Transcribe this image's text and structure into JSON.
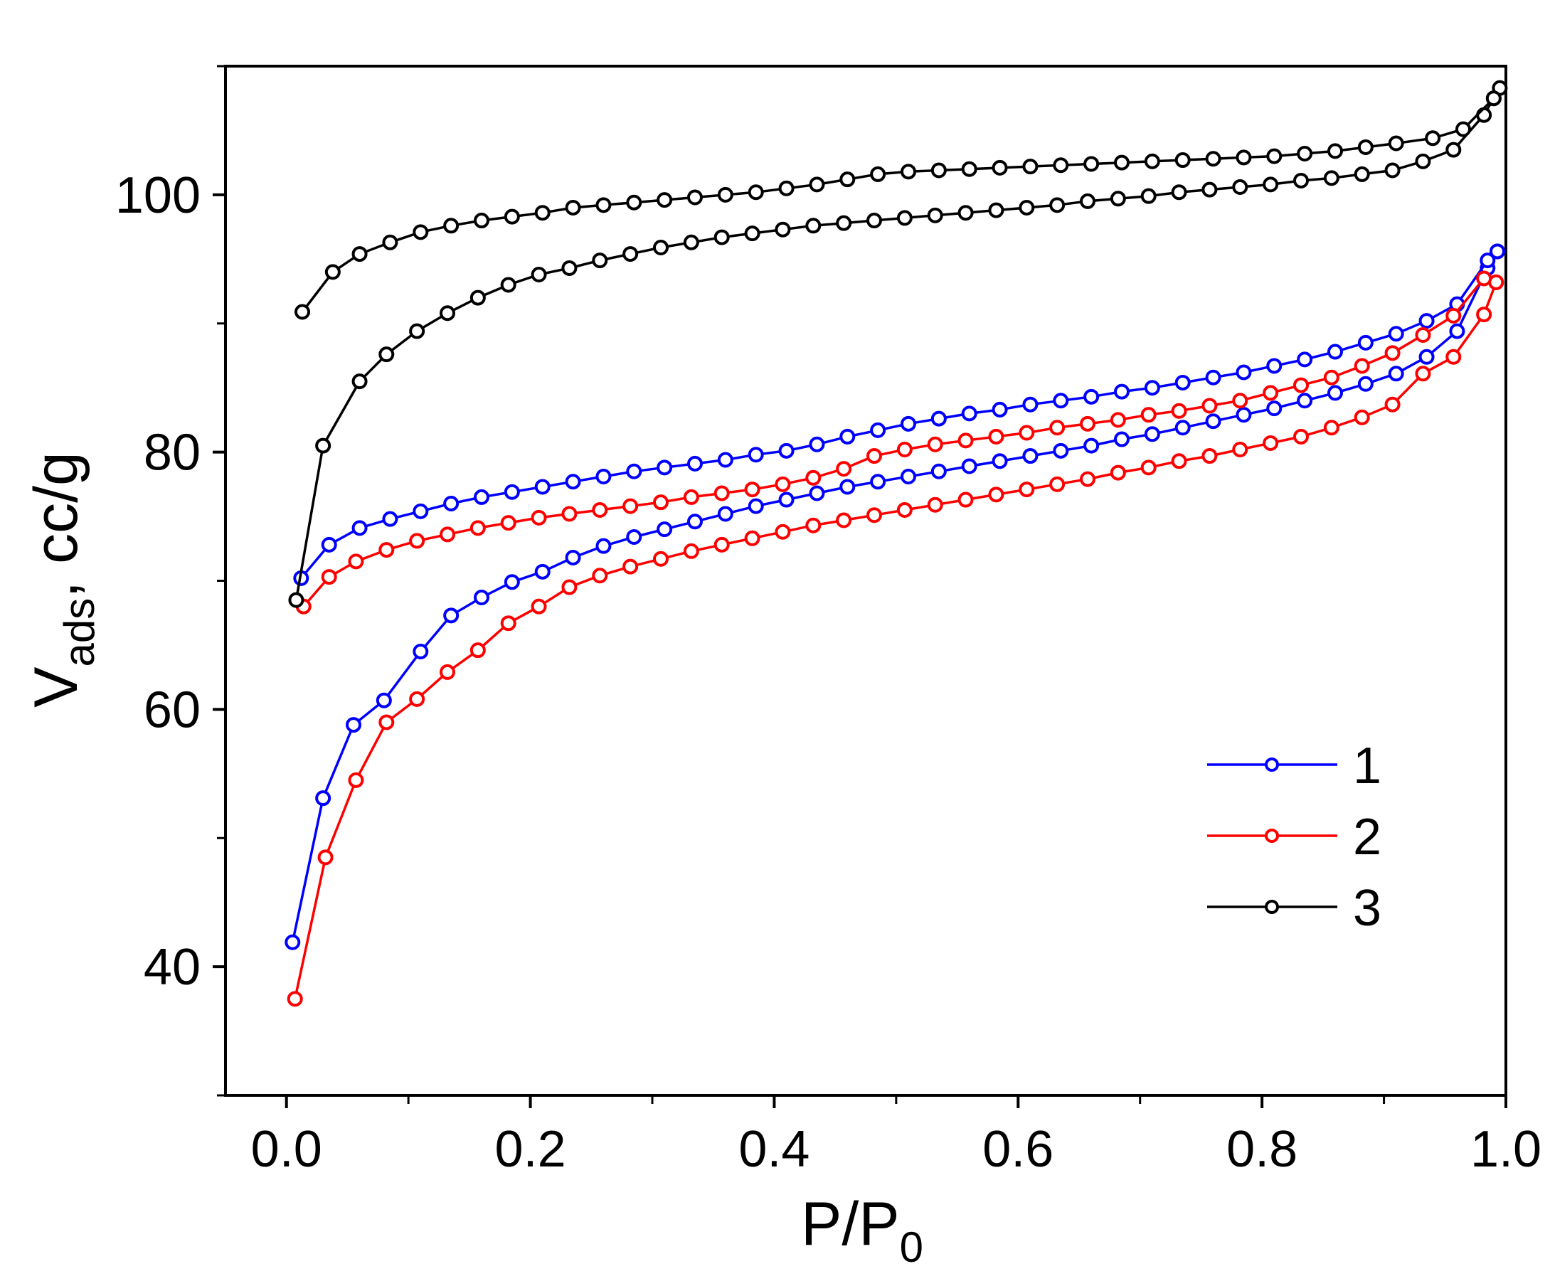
{
  "chart_data": {
    "type": "line",
    "xlabel": {
      "main": "P/P",
      "sub": "0"
    },
    "ylabel": {
      "main": "V",
      "sub": "ads",
      "rest": ", cc/g"
    },
    "xlim": [
      -0.05,
      1.0
    ],
    "ylim": [
      30,
      110
    ],
    "x_ticks": [
      "0.0",
      "0.2",
      "0.4",
      "0.6",
      "0.8",
      "1.0"
    ],
    "y_ticks": [
      "40",
      "60",
      "80",
      "100"
    ],
    "legend_position": "lower-right",
    "series": [
      {
        "name": "1",
        "color": "#0000ff",
        "adsorption": {
          "x": [
            0.005,
            0.03,
            0.055,
            0.08,
            0.11,
            0.135,
            0.16,
            0.185,
            0.21,
            0.235,
            0.26,
            0.285,
            0.31,
            0.335,
            0.36,
            0.385,
            0.41,
            0.435,
            0.46,
            0.485,
            0.51,
            0.535,
            0.56,
            0.585,
            0.61,
            0.635,
            0.66,
            0.685,
            0.71,
            0.735,
            0.76,
            0.785,
            0.81,
            0.835,
            0.86,
            0.885,
            0.91,
            0.935,
            0.96,
            0.985,
            0.993
          ],
          "y": [
            41.9,
            53.1,
            58.8,
            60.7,
            64.5,
            67.3,
            68.7,
            69.9,
            70.7,
            71.8,
            72.7,
            73.4,
            74.0,
            74.6,
            75.2,
            75.8,
            76.3,
            76.8,
            77.3,
            77.7,
            78.1,
            78.5,
            78.9,
            79.3,
            79.7,
            80.1,
            80.5,
            81.0,
            81.4,
            81.9,
            82.4,
            82.9,
            83.4,
            84.0,
            84.6,
            85.3,
            86.1,
            87.4,
            89.4,
            94.3,
            95.6
          ]
        },
        "desorption": {
          "x": [
            0.993,
            0.985,
            0.96,
            0.935,
            0.91,
            0.885,
            0.86,
            0.835,
            0.81,
            0.785,
            0.76,
            0.735,
            0.71,
            0.685,
            0.66,
            0.635,
            0.61,
            0.585,
            0.56,
            0.535,
            0.51,
            0.485,
            0.46,
            0.435,
            0.41,
            0.385,
            0.36,
            0.335,
            0.31,
            0.285,
            0.26,
            0.235,
            0.21,
            0.185,
            0.16,
            0.135,
            0.11,
            0.085,
            0.06,
            0.035,
            0.012
          ],
          "y": [
            95.6,
            94.9,
            91.5,
            90.2,
            89.2,
            88.5,
            87.8,
            87.2,
            86.7,
            86.2,
            85.8,
            85.4,
            85.0,
            84.7,
            84.3,
            84.0,
            83.7,
            83.3,
            83.0,
            82.6,
            82.2,
            81.7,
            81.2,
            80.6,
            80.1,
            79.8,
            79.4,
            79.1,
            78.8,
            78.5,
            78.1,
            77.7,
            77.3,
            76.9,
            76.5,
            76.0,
            75.4,
            74.8,
            74.1,
            72.8,
            70.2
          ]
        }
      },
      {
        "name": "2",
        "color": "#ff0000",
        "adsorption": {
          "x": [
            0.007,
            0.032,
            0.057,
            0.082,
            0.107,
            0.132,
            0.157,
            0.182,
            0.207,
            0.232,
            0.257,
            0.282,
            0.307,
            0.332,
            0.357,
            0.382,
            0.407,
            0.432,
            0.457,
            0.482,
            0.507,
            0.532,
            0.557,
            0.582,
            0.607,
            0.632,
            0.657,
            0.682,
            0.707,
            0.732,
            0.757,
            0.782,
            0.807,
            0.832,
            0.857,
            0.882,
            0.907,
            0.932,
            0.957,
            0.982,
            0.992
          ],
          "y": [
            37.5,
            48.5,
            54.5,
            59.0,
            60.8,
            62.9,
            64.6,
            66.7,
            68.0,
            69.5,
            70.4,
            71.1,
            71.7,
            72.3,
            72.8,
            73.3,
            73.8,
            74.3,
            74.7,
            75.1,
            75.5,
            75.9,
            76.3,
            76.7,
            77.1,
            77.5,
            77.9,
            78.4,
            78.8,
            79.3,
            79.7,
            80.2,
            80.7,
            81.2,
            81.9,
            82.7,
            83.7,
            86.1,
            87.4,
            90.7,
            93.2
          ]
        },
        "desorption": {
          "x": [
            0.992,
            0.982,
            0.957,
            0.932,
            0.907,
            0.882,
            0.857,
            0.832,
            0.807,
            0.782,
            0.757,
            0.732,
            0.707,
            0.682,
            0.657,
            0.632,
            0.607,
            0.582,
            0.557,
            0.532,
            0.507,
            0.482,
            0.457,
            0.432,
            0.407,
            0.382,
            0.357,
            0.332,
            0.307,
            0.282,
            0.257,
            0.232,
            0.207,
            0.182,
            0.157,
            0.132,
            0.107,
            0.082,
            0.057,
            0.035,
            0.014
          ],
          "y": [
            93.2,
            93.5,
            90.6,
            89.1,
            87.7,
            86.7,
            85.8,
            85.2,
            84.6,
            84.0,
            83.6,
            83.2,
            82.9,
            82.5,
            82.2,
            81.9,
            81.5,
            81.2,
            80.9,
            80.6,
            80.2,
            79.7,
            78.7,
            78.0,
            77.5,
            77.1,
            76.8,
            76.5,
            76.1,
            75.8,
            75.5,
            75.2,
            74.9,
            74.5,
            74.1,
            73.6,
            73.1,
            72.4,
            71.5,
            70.3,
            68.0
          ]
        }
      },
      {
        "name": "3",
        "color": "#000000",
        "adsorption": {
          "x": [
            0.008,
            0.03,
            0.06,
            0.082,
            0.107,
            0.132,
            0.157,
            0.182,
            0.207,
            0.232,
            0.257,
            0.282,
            0.307,
            0.332,
            0.357,
            0.382,
            0.407,
            0.432,
            0.457,
            0.482,
            0.507,
            0.532,
            0.557,
            0.582,
            0.607,
            0.632,
            0.657,
            0.682,
            0.707,
            0.732,
            0.757,
            0.782,
            0.807,
            0.832,
            0.857,
            0.882,
            0.907,
            0.932,
            0.957,
            0.982,
            0.99
          ],
          "y": [
            68.5,
            80.5,
            85.5,
            87.6,
            89.4,
            90.8,
            92.0,
            93.0,
            93.8,
            94.3,
            94.9,
            95.4,
            95.9,
            96.3,
            96.7,
            97.0,
            97.3,
            97.6,
            97.8,
            98.0,
            98.2,
            98.4,
            98.6,
            98.8,
            99.0,
            99.2,
            99.5,
            99.7,
            99.9,
            100.2,
            100.4,
            100.6,
            100.8,
            101.1,
            101.3,
            101.6,
            101.9,
            102.6,
            103.5,
            106.2,
            107.5
          ]
        },
        "desorption": {
          "x": [
            0.995,
            0.99,
            0.965,
            0.94,
            0.91,
            0.885,
            0.86,
            0.835,
            0.81,
            0.785,
            0.76,
            0.735,
            0.71,
            0.685,
            0.66,
            0.635,
            0.61,
            0.585,
            0.56,
            0.535,
            0.51,
            0.485,
            0.46,
            0.435,
            0.41,
            0.385,
            0.36,
            0.335,
            0.31,
            0.285,
            0.26,
            0.235,
            0.21,
            0.185,
            0.16,
            0.135,
            0.11,
            0.085,
            0.06,
            0.038,
            0.013
          ],
          "y": [
            108.3,
            107.5,
            105.1,
            104.4,
            104.0,
            103.7,
            103.4,
            103.2,
            103.0,
            102.9,
            102.8,
            102.7,
            102.6,
            102.5,
            102.4,
            102.3,
            102.2,
            102.1,
            102.0,
            101.9,
            101.8,
            101.6,
            101.2,
            100.8,
            100.5,
            100.2,
            100.0,
            99.8,
            99.6,
            99.4,
            99.2,
            99.0,
            98.6,
            98.3,
            98.0,
            97.6,
            97.1,
            96.3,
            95.4,
            94.0,
            90.9
          ]
        }
      }
    ]
  }
}
